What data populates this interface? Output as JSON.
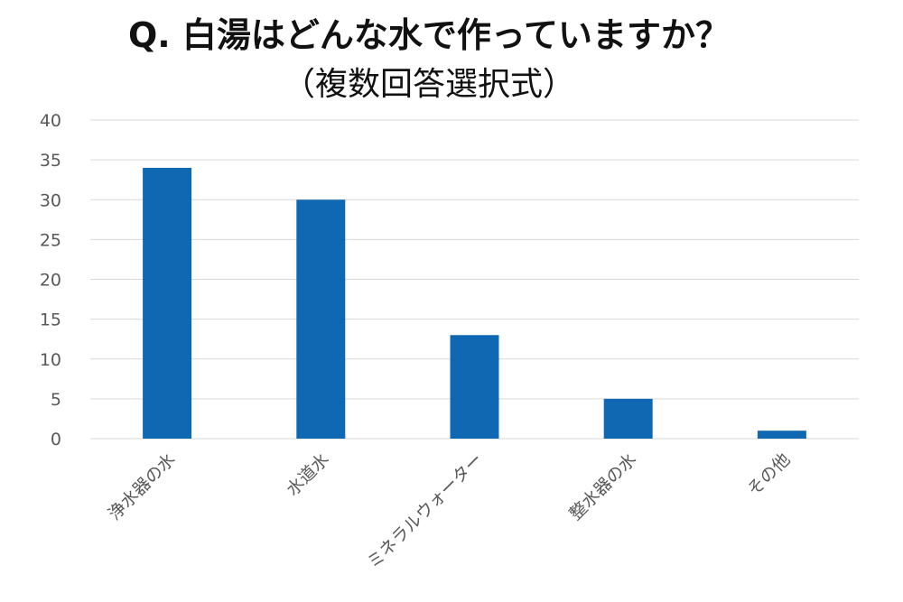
{
  "chart_data": {
    "type": "bar",
    "title": "Q. 白湯はどんな水で作っていますか？",
    "subtitle": "（複数回答選択式）",
    "categories": [
      "浄水器の水",
      "水道水",
      "ミネラルウォーター",
      "整水器の水",
      "その他"
    ],
    "series": [
      {
        "values": [
          34,
          30,
          13,
          5,
          1
        ]
      }
    ],
    "xlabel": "",
    "ylabel": "",
    "ylim": [
      0,
      40
    ],
    "yticks": [
      0,
      5,
      10,
      15,
      20,
      25,
      30,
      35,
      40
    ],
    "grid": true,
    "legend": "none",
    "bar_color": "#1068b2",
    "grid_color": "#d9d9d9",
    "tick_color": "#595959"
  }
}
